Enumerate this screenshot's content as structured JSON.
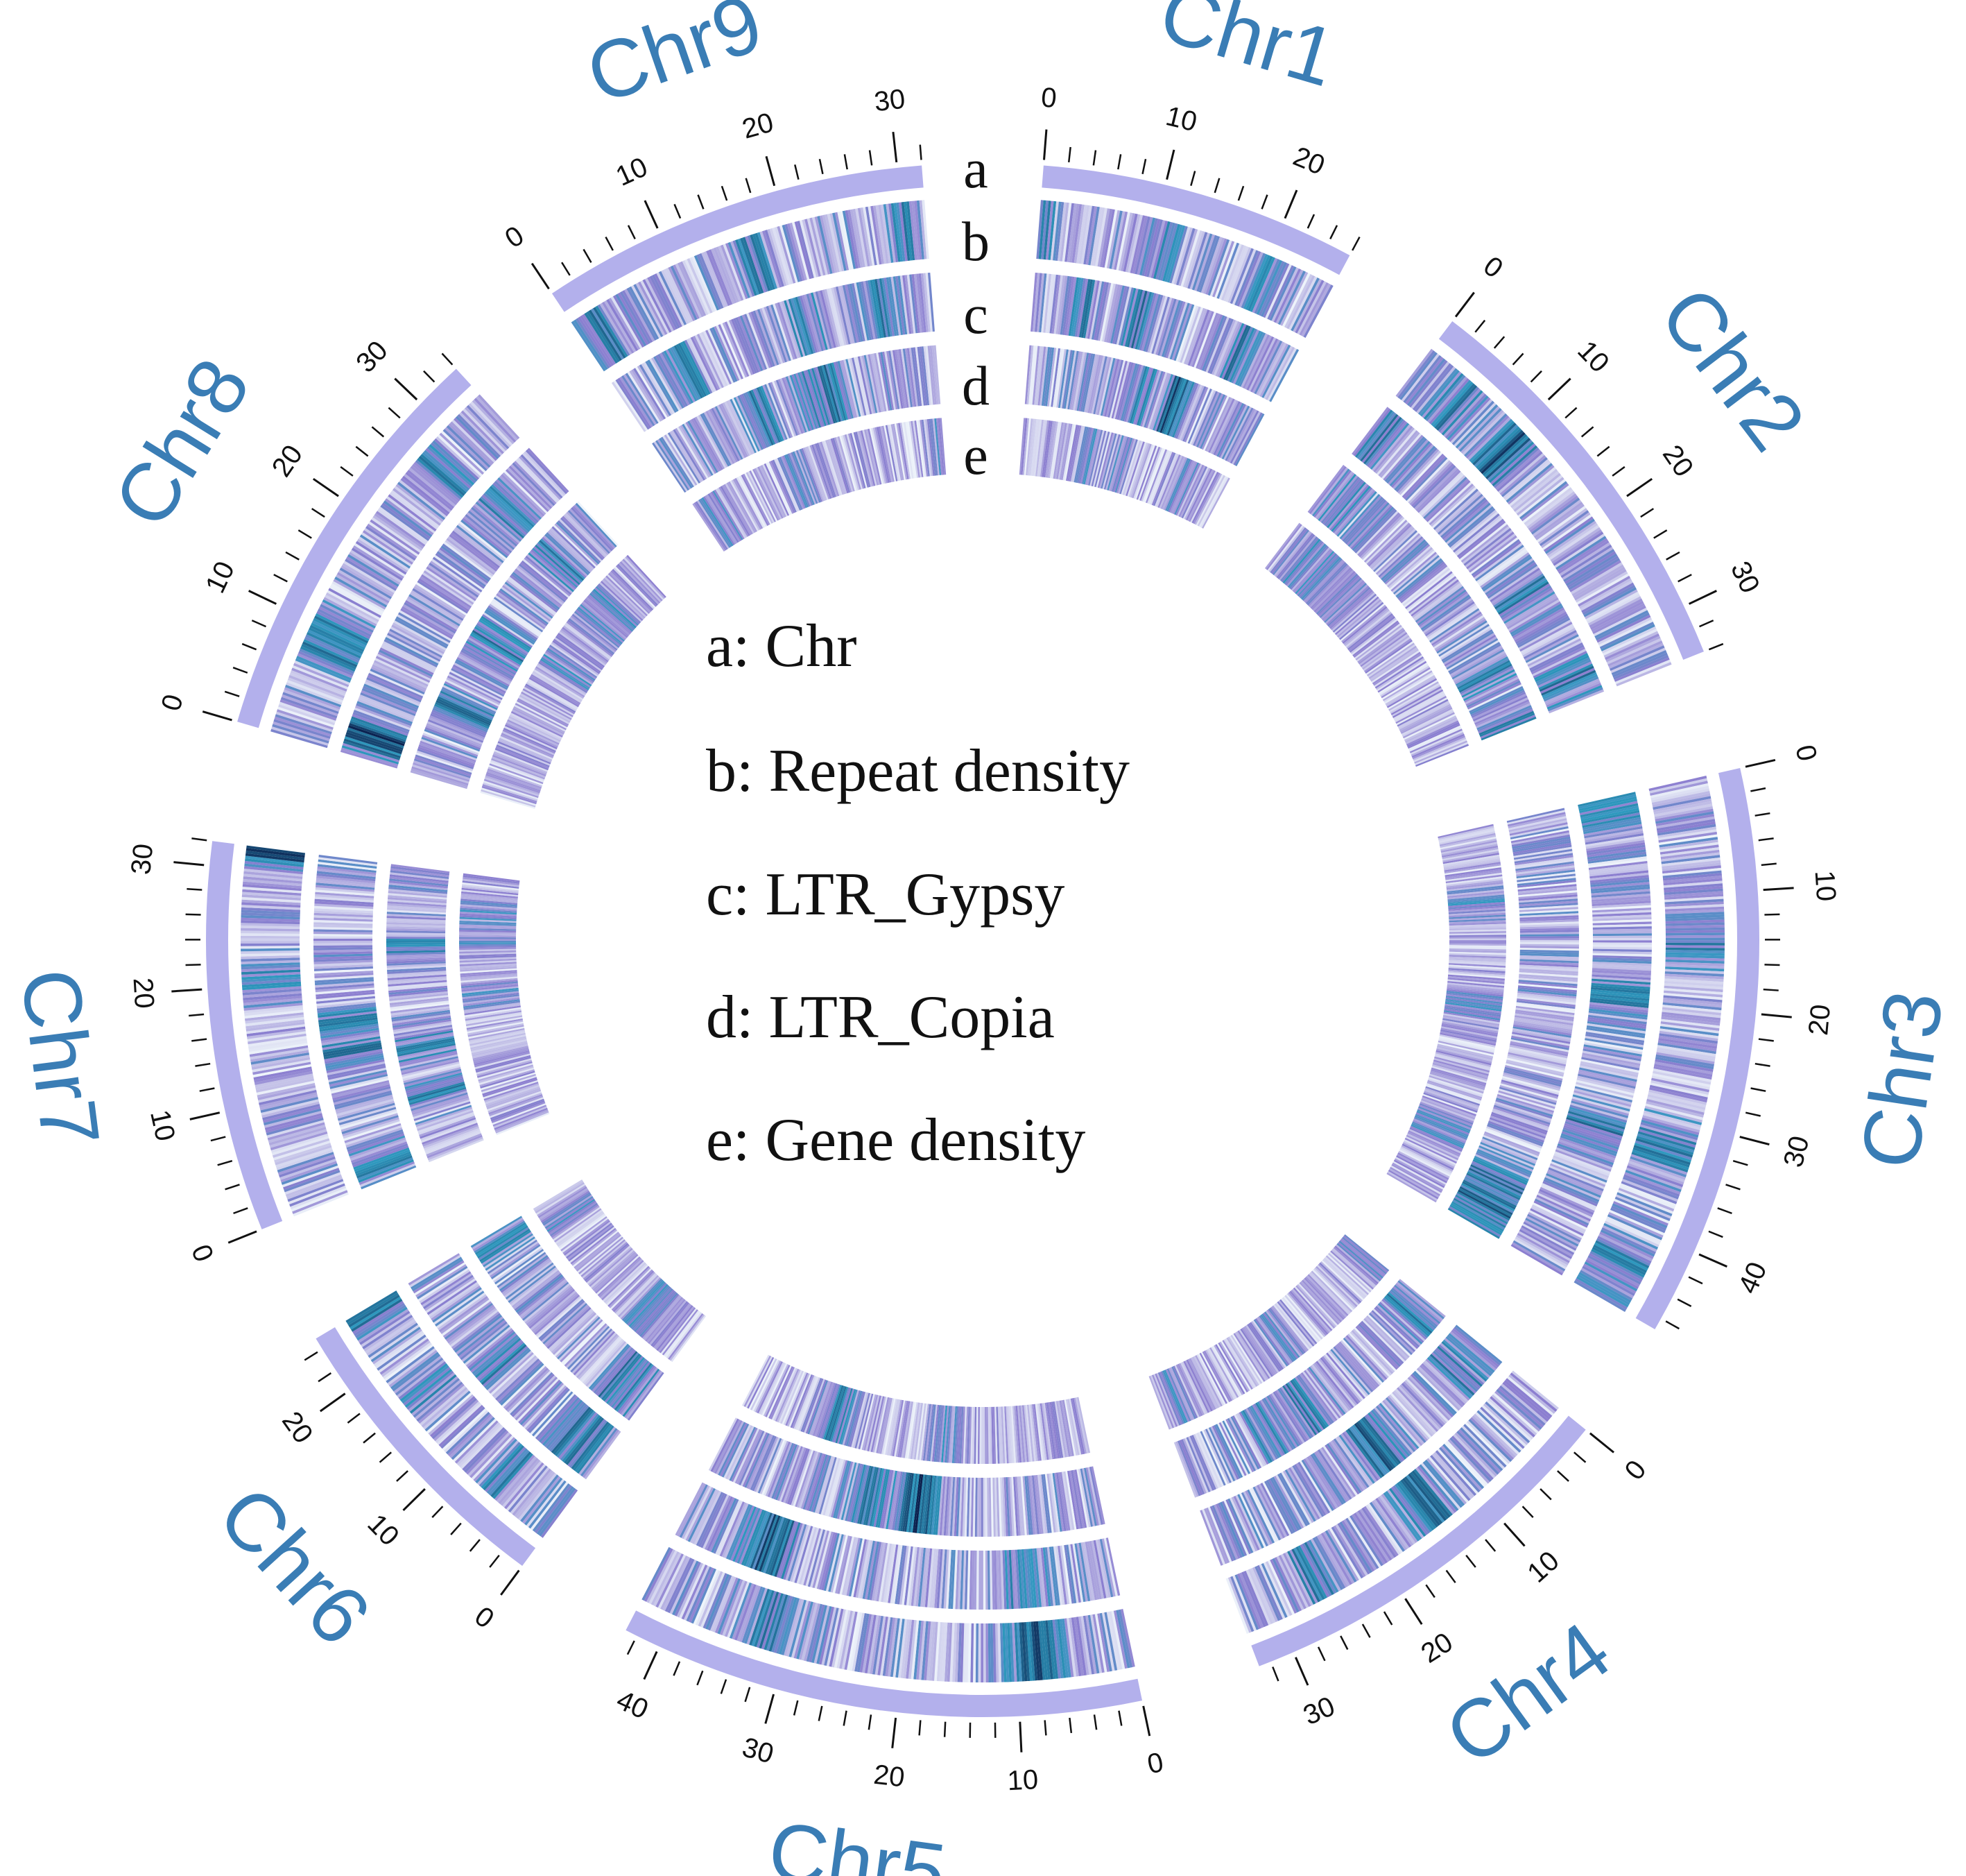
{
  "chromosomes": [
    {
      "name": "Chr1",
      "length": 26,
      "tick_labels": [
        "0",
        "10",
        "20"
      ]
    },
    {
      "name": "Chr2",
      "length": 34,
      "tick_labels": [
        "0",
        "10",
        "20",
        "30"
      ]
    },
    {
      "name": "Chr3",
      "length": 47,
      "tick_labels": [
        "0",
        "10",
        "20",
        "30",
        "40"
      ]
    },
    {
      "name": "Chr4",
      "length": 33,
      "tick_labels": [
        "0",
        "10",
        "20",
        "30"
      ]
    },
    {
      "name": "Chr5",
      "length": 43,
      "tick_labels": [
        "0",
        "10",
        "20",
        "30",
        "40"
      ]
    },
    {
      "name": "Chr6",
      "length": 25,
      "tick_labels": [
        "0",
        "10",
        "20"
      ]
    },
    {
      "name": "Chr7",
      "length": 32,
      "tick_labels": [
        "0",
        "10",
        "20",
        "30"
      ]
    },
    {
      "name": "Chr8",
      "length": 34,
      "tick_labels": [
        "0",
        "10",
        "20",
        "30"
      ]
    },
    {
      "name": "Chr9",
      "length": 32,
      "tick_labels": [
        "0",
        "10",
        "20",
        "30"
      ]
    }
  ],
  "track_letters": [
    "a",
    "b",
    "c",
    "d",
    "e"
  ],
  "legend": [
    "a: Chr",
    "b: Repeat density",
    "c: LTR_Gypsy",
    "d: LTR_Copia",
    "e: Gene density"
  ],
  "colors": {
    "chromosome_band": "#b3b0ec",
    "chromosome_name": "#3a7db5",
    "heat_low": "#eef4fa",
    "heat_mid_purple": "#8c7fd0",
    "heat_mid_teal": "#2f9ac0",
    "heat_high": "#0a1f4d"
  }
}
